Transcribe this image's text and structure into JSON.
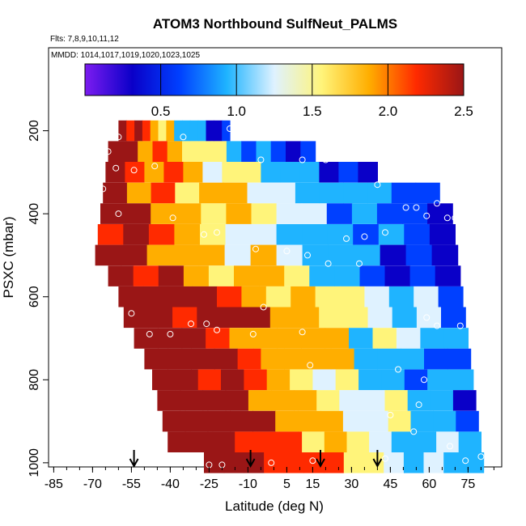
{
  "chart_data": {
    "type": "heatmap",
    "title": "ATOM3 Northbound SulfNeut_PALMS",
    "flights_note": "Flts: 7,8,9,10,11,12",
    "dates_note": "MMDD: 1014,1017,1019,1020,1023,1025",
    "xlabel": "Latitude (deg N)",
    "ylabel": "PSXC (mbar)",
    "xlim": [
      -87,
      88
    ],
    "ylim": [
      1010,
      0
    ],
    "x_ticks": [
      -85,
      -70,
      -55,
      -40,
      -25,
      -10,
      5,
      15,
      30,
      45,
      60,
      75
    ],
    "x_tick_labels": [
      "-85",
      "-70",
      "-55",
      "-40",
      "-25",
      "-10",
      "5",
      "15",
      "30",
      "45",
      "60",
      "75"
    ],
    "y_ticks": [
      200,
      400,
      600,
      800,
      1000
    ],
    "y_tick_labels": [
      "200",
      "400",
      "600",
      "800",
      "1000"
    ],
    "colorbar": {
      "min": 0,
      "max": 2.5,
      "ticks": [
        0.5,
        1.0,
        1.5,
        2.0,
        2.5
      ],
      "tick_labels": [
        "0.5",
        "1.0",
        "1.5",
        "2.0",
        "2.5"
      ],
      "colors": [
        "#7c1cf0",
        "#0a00c8",
        "#0040ff",
        "#1fb4ff",
        "#dff2ff",
        "#fff47a",
        "#ffae00",
        "#ff2a00",
        "#9a1616"
      ]
    },
    "rows": [
      {
        "p": 200,
        "x0": -60,
        "x1": -17
      },
      {
        "p": 250,
        "x0": -64,
        "x1": 16
      },
      {
        "p": 300,
        "x0": -65,
        "x1": 40
      },
      {
        "p": 350,
        "x0": -66,
        "x1": 64
      },
      {
        "p": 400,
        "x0": -67,
        "x1": 69
      },
      {
        "p": 450,
        "x0": -68,
        "x1": 70
      },
      {
        "p": 500,
        "x0": -69,
        "x1": 71
      },
      {
        "p": 550,
        "x0": -64,
        "x1": 72
      },
      {
        "p": 600,
        "x0": -60,
        "x1": 73
      },
      {
        "p": 650,
        "x0": -58,
        "x1": 74
      },
      {
        "p": 700,
        "x0": -54,
        "x1": 75
      },
      {
        "p": 750,
        "x0": -50,
        "x1": 76
      },
      {
        "p": 800,
        "x0": -47,
        "x1": 77
      },
      {
        "p": 850,
        "x0": -45,
        "x1": 78
      },
      {
        "p": 900,
        "x0": -43,
        "x1": 79
      },
      {
        "p": 950,
        "x0": -41,
        "x1": 80
      },
      {
        "p": 1000,
        "x0": -27,
        "x1": 81
      }
    ],
    "sample_points": [
      [
        -60,
        215
      ],
      [
        -64,
        250
      ],
      [
        -61,
        290
      ],
      [
        -54,
        295
      ],
      [
        -35,
        215
      ],
      [
        -17,
        195
      ],
      [
        -66,
        340
      ],
      [
        -46,
        285
      ],
      [
        -39,
        410
      ],
      [
        -22,
        445
      ],
      [
        -27,
        450
      ],
      [
        -60,
        400
      ],
      [
        -5,
        270
      ],
      [
        11,
        270
      ],
      [
        20,
        270
      ],
      [
        28,
        460
      ],
      [
        35,
        455
      ],
      [
        43,
        445
      ],
      [
        40,
        330
      ],
      [
        51,
        385
      ],
      [
        55,
        385
      ],
      [
        63,
        375
      ],
      [
        59,
        405
      ],
      [
        67,
        410
      ],
      [
        70,
        410
      ],
      [
        -7,
        485
      ],
      [
        5,
        490
      ],
      [
        13,
        500
      ],
      [
        21,
        520
      ],
      [
        33,
        520
      ],
      [
        -55,
        640
      ],
      [
        -4,
        625
      ],
      [
        -26,
        665
      ],
      [
        -32,
        665
      ],
      [
        -40,
        690
      ],
      [
        -48,
        690
      ],
      [
        -22,
        680
      ],
      [
        -8,
        690
      ],
      [
        63,
        670
      ],
      [
        72,
        670
      ],
      [
        59,
        650
      ],
      [
        11,
        685
      ],
      [
        14,
        765
      ],
      [
        48,
        775
      ],
      [
        58,
        800
      ],
      [
        56,
        860
      ],
      [
        45,
        885
      ],
      [
        54,
        925
      ],
      [
        68,
        960
      ],
      [
        -25,
        1005
      ],
      [
        -20,
        1005
      ],
      [
        -1,
        1000
      ],
      [
        15,
        995
      ],
      [
        43,
        990
      ],
      [
        80,
        985
      ],
      [
        74,
        995
      ]
    ],
    "arrows_x": [
      -54,
      -9,
      18,
      40
    ]
  }
}
